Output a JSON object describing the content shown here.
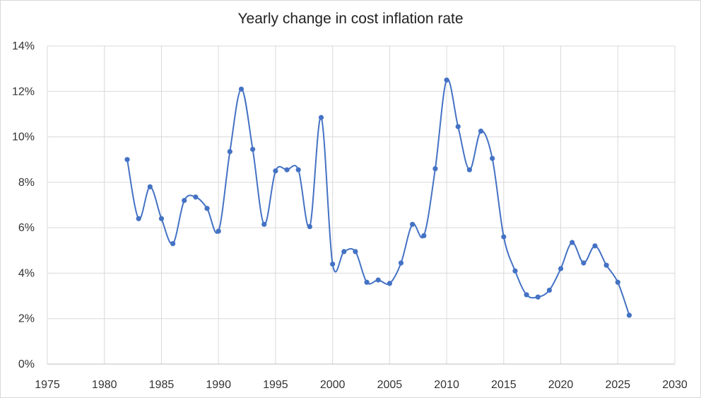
{
  "chart_data": {
    "type": "line",
    "title": "Yearly change in cost inflation rate",
    "xlabel": "",
    "ylabel": "",
    "xlim": [
      1975,
      2030
    ],
    "ylim": [
      0,
      14
    ],
    "x_ticks": [
      1975,
      1980,
      1985,
      1990,
      1995,
      2000,
      2005,
      2010,
      2015,
      2020,
      2025,
      2030
    ],
    "y_ticks": [
      "0%",
      "2%",
      "4%",
      "6%",
      "8%",
      "10%",
      "12%",
      "14%"
    ],
    "grid": true,
    "smooth": true,
    "color": "#4472c4",
    "series": [
      {
        "x": [
          1982,
          1983,
          1984,
          1985,
          1986,
          1987,
          1988,
          1989,
          1990,
          1991,
          1992,
          1993,
          1994,
          1995,
          1996,
          1997,
          1998,
          1999,
          2000,
          2001,
          2002,
          2003,
          2004,
          2005,
          2006,
          2007,
          2008,
          2009,
          2010,
          2011,
          2012,
          2013,
          2014,
          2015,
          2016,
          2017,
          2018,
          2019,
          2020,
          2021,
          2022,
          2023,
          2024,
          2025,
          2026
        ],
        "values": [
          9.0,
          6.4,
          7.8,
          6.4,
          5.3,
          7.2,
          7.35,
          6.85,
          5.85,
          9.35,
          12.1,
          9.45,
          6.15,
          8.5,
          8.55,
          8.55,
          6.05,
          10.85,
          4.4,
          4.95,
          4.95,
          3.6,
          3.7,
          3.55,
          4.45,
          6.15,
          5.65,
          8.6,
          12.5,
          10.45,
          8.55,
          10.25,
          9.05,
          5.6,
          4.1,
          3.05,
          2.95,
          3.25,
          4.2,
          5.35,
          4.45,
          5.2,
          4.35,
          3.6,
          2.15
        ]
      }
    ]
  }
}
